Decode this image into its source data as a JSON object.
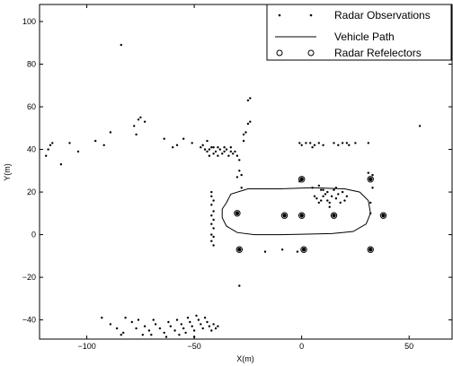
{
  "chart_data": {
    "type": "scatter",
    "xlabel": "X(m)",
    "ylabel": "Y(m)",
    "xlim": [
      -122,
      70
    ],
    "ylim": [
      -49,
      108
    ],
    "xticks": [
      -100,
      -50,
      0,
      50
    ],
    "yticks": [
      -40,
      -20,
      0,
      20,
      40,
      60,
      80,
      100
    ],
    "x_tick_labels": [
      "−100",
      "−50",
      "0",
      "50"
    ],
    "y_tick_labels": [
      "−40",
      "−20",
      "0",
      "20",
      "40",
      "60",
      "80",
      "100"
    ],
    "grid": false,
    "legend_position": "top-right",
    "legend": [
      {
        "label": "Radar Observations",
        "marker": "dot"
      },
      {
        "label": "Vehicle Path",
        "marker": "line"
      },
      {
        "label": "Radar Refelectors",
        "marker": "circle"
      }
    ],
    "series": [
      {
        "name": "Radar Observations",
        "marker": "dot",
        "color": "#000000",
        "points": [
          [
            -119,
            37
          ],
          [
            -118,
            40
          ],
          [
            -117,
            42
          ],
          [
            -116,
            43
          ],
          [
            -112,
            33
          ],
          [
            -108,
            43
          ],
          [
            -104,
            39
          ],
          [
            -96,
            44
          ],
          [
            -92,
            42
          ],
          [
            -89,
            48
          ],
          [
            -84,
            89
          ],
          [
            -78,
            51
          ],
          [
            -77,
            47
          ],
          [
            -76,
            54
          ],
          [
            -75,
            55
          ],
          [
            -73,
            53
          ],
          [
            -64,
            45
          ],
          [
            -60,
            41
          ],
          [
            -55,
            45
          ],
          [
            -51,
            43
          ],
          [
            -47,
            41
          ],
          [
            -44,
            44
          ],
          [
            -58,
            42
          ],
          [
            -46,
            42
          ],
          [
            -45,
            40
          ],
          [
            -44,
            39
          ],
          [
            -43,
            40
          ],
          [
            -42,
            41
          ],
          [
            -41,
            38
          ],
          [
            -40,
            39
          ],
          [
            -39,
            41
          ],
          [
            -38,
            40
          ],
          [
            -37,
            38
          ],
          [
            -36,
            39
          ],
          [
            -35,
            40
          ],
          [
            -34,
            37
          ],
          [
            -33,
            39
          ],
          [
            -32,
            38
          ],
          [
            -43,
            37
          ],
          [
            -39,
            37
          ],
          [
            -36,
            41
          ],
          [
            -41,
            41
          ],
          [
            -33,
            41
          ],
          [
            -31,
            39
          ],
          [
            -30,
            37
          ],
          [
            -29,
            35
          ],
          [
            -29,
            30
          ],
          [
            -28,
            28
          ],
          [
            -30,
            27
          ],
          [
            -28,
            22
          ],
          [
            -27,
            44
          ],
          [
            -27,
            47
          ],
          [
            -26,
            48
          ],
          [
            -25,
            52
          ],
          [
            -24,
            53
          ],
          [
            -25,
            63
          ],
          [
            -24,
            64
          ],
          [
            -29,
            -24
          ],
          [
            -42,
            20
          ],
          [
            -42,
            18
          ],
          [
            -41,
            16
          ],
          [
            -42,
            14
          ],
          [
            -41,
            11
          ],
          [
            -42,
            9
          ],
          [
            -41,
            7
          ],
          [
            -42,
            5
          ],
          [
            -41,
            3
          ],
          [
            -42,
            0
          ],
          [
            -41,
            -1
          ],
          [
            -42,
            -3
          ],
          [
            -41,
            -5
          ],
          [
            -17,
            -8
          ],
          [
            -9,
            -7
          ],
          [
            -2,
            -8
          ],
          [
            -1,
            43
          ],
          [
            0,
            42
          ],
          [
            2,
            43
          ],
          [
            4,
            43
          ],
          [
            5,
            41
          ],
          [
            6,
            42
          ],
          [
            8,
            43
          ],
          [
            10,
            42
          ],
          [
            15,
            43
          ],
          [
            17,
            42
          ],
          [
            19,
            43
          ],
          [
            21,
            43
          ],
          [
            22,
            42
          ],
          [
            25,
            43
          ],
          [
            31,
            43
          ],
          [
            5,
            22
          ],
          [
            8,
            23
          ],
          [
            9,
            21
          ],
          [
            7,
            17
          ],
          [
            10,
            18
          ],
          [
            11,
            19
          ],
          [
            12,
            16
          ],
          [
            13,
            15
          ],
          [
            14,
            18
          ],
          [
            12,
            20
          ],
          [
            15,
            21
          ],
          [
            16,
            17
          ],
          [
            17,
            19
          ],
          [
            18,
            15
          ],
          [
            19,
            20
          ],
          [
            20,
            16
          ],
          [
            21,
            18
          ],
          [
            8,
            15
          ],
          [
            6,
            18
          ],
          [
            9,
            16
          ],
          [
            13,
            13
          ],
          [
            16,
            22
          ],
          [
            10,
            21
          ],
          [
            -1,
            25
          ],
          [
            31,
            29
          ],
          [
            33,
            22
          ],
          [
            33,
            28
          ],
          [
            32,
            15
          ],
          [
            32,
            10
          ],
          [
            55,
            51
          ],
          [
            -93,
            -39
          ],
          [
            -89,
            -42
          ],
          [
            -86,
            -44
          ],
          [
            -84,
            -47
          ],
          [
            -83,
            -46
          ],
          [
            -82,
            -39
          ],
          [
            -79,
            -41
          ],
          [
            -77,
            -44
          ],
          [
            -74,
            -47
          ],
          [
            -73,
            -43
          ],
          [
            -71,
            -45
          ],
          [
            -69,
            -40
          ],
          [
            -68,
            -42
          ],
          [
            -66,
            -44
          ],
          [
            -64,
            -46
          ],
          [
            -62,
            -41
          ],
          [
            -61,
            -43
          ],
          [
            -59,
            -45
          ],
          [
            -58,
            -40
          ],
          [
            -56,
            -42
          ],
          [
            -55,
            -44
          ],
          [
            -54,
            -46
          ],
          [
            -53,
            -39
          ],
          [
            -52,
            -41
          ],
          [
            -51,
            -43
          ],
          [
            -50,
            -45
          ],
          [
            -49,
            -38
          ],
          [
            -48,
            -40
          ],
          [
            -47,
            -42
          ],
          [
            -46,
            -44
          ],
          [
            -45,
            -39
          ],
          [
            -44,
            -41
          ],
          [
            -43,
            -43
          ],
          [
            -42,
            -45
          ],
          [
            -41,
            -42
          ],
          [
            -40,
            -44
          ],
          [
            -39,
            -43
          ],
          [
            -50,
            -48
          ],
          [
            -57,
            -47
          ],
          [
            -63,
            -48
          ],
          [
            -70,
            -47
          ],
          [
            -76,
            -40
          ]
        ]
      },
      {
        "name": "Vehicle Path",
        "marker": "line",
        "color": "#000000",
        "points": [
          [
            -35,
            15
          ],
          [
            -33,
            19
          ],
          [
            -25,
            21.5
          ],
          [
            -10,
            21.5
          ],
          [
            5,
            22
          ],
          [
            20,
            21.5
          ],
          [
            27,
            20
          ],
          [
            31,
            16
          ],
          [
            32,
            10
          ],
          [
            30,
            5
          ],
          [
            24,
            1.5
          ],
          [
            14,
            0.5
          ],
          [
            0,
            0.2
          ],
          [
            -10,
            0
          ],
          [
            -22,
            0
          ],
          [
            -30,
            1
          ],
          [
            -35,
            4
          ],
          [
            -37,
            8
          ],
          [
            -37,
            12
          ],
          [
            -35,
            15
          ]
        ]
      },
      {
        "name": "Radar Refelectors",
        "marker": "circle",
        "color": "#000000",
        "points": [
          [
            -30,
            10
          ],
          [
            -8,
            9
          ],
          [
            15,
            9
          ],
          [
            38,
            9
          ],
          [
            0,
            26
          ],
          [
            32,
            26
          ],
          [
            1,
            -7
          ],
          [
            -29,
            -7
          ],
          [
            32,
            -7
          ],
          [
            0,
            9
          ]
        ]
      }
    ]
  }
}
